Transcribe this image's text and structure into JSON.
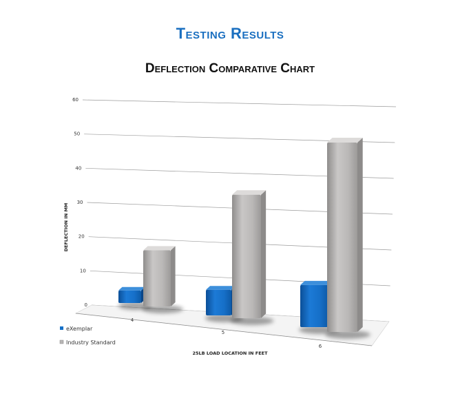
{
  "page": {
    "title": "Testing Results"
  },
  "chart_data": {
    "type": "bar",
    "title": "Deflection Comparative Chart",
    "xlabel": "25LB LOAD LOCATION IN FEET",
    "ylabel": "DEFLECTION IN MM",
    "categories": [
      "4",
      "5",
      "6"
    ],
    "y_ticks": [
      "0",
      "10",
      "20",
      "30",
      "40",
      "50",
      "60"
    ],
    "ylim": [
      0,
      60
    ],
    "grid": true,
    "three_d": true,
    "legend_position": "bottom-left",
    "series": [
      {
        "name": "eXemplar",
        "values": [
          4,
          7,
          11
        ],
        "color": "#1570c8"
      },
      {
        "name": "Industry Standard",
        "values": [
          17,
          32,
          47
        ],
        "color": "#b8b6b5"
      }
    ]
  }
}
